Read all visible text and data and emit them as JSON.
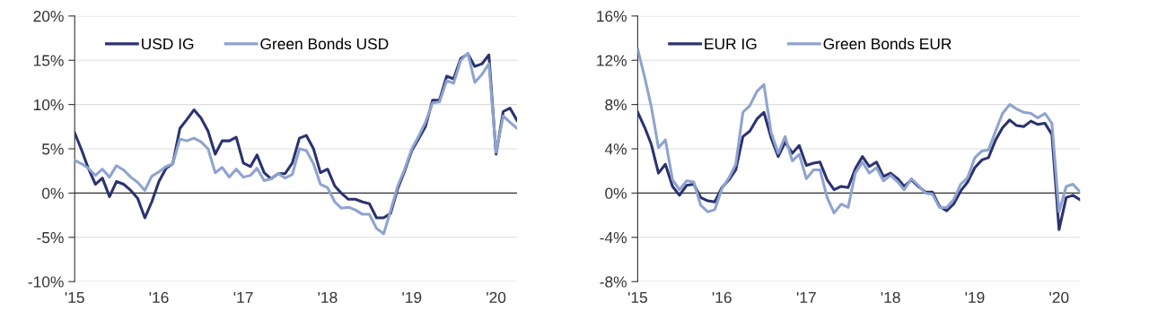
{
  "chart_data": [
    {
      "type": "line",
      "x": [
        "2015-01",
        "2015-02",
        "2015-03",
        "2015-04",
        "2015-05",
        "2015-06",
        "2015-07",
        "2015-08",
        "2015-09",
        "2015-10",
        "2015-11",
        "2015-12",
        "2016-01",
        "2016-02",
        "2016-03",
        "2016-04",
        "2016-05",
        "2016-06",
        "2016-07",
        "2016-08",
        "2016-09",
        "2016-10",
        "2016-11",
        "2016-12",
        "2017-01",
        "2017-02",
        "2017-03",
        "2017-04",
        "2017-05",
        "2017-06",
        "2017-07",
        "2017-08",
        "2017-09",
        "2017-10",
        "2017-11",
        "2017-12",
        "2018-01",
        "2018-02",
        "2018-03",
        "2018-04",
        "2018-05",
        "2018-06",
        "2018-07",
        "2018-08",
        "2018-09",
        "2018-10",
        "2018-11",
        "2018-12",
        "2019-01",
        "2019-02",
        "2019-03",
        "2019-04",
        "2019-05",
        "2019-06",
        "2019-07",
        "2019-08",
        "2019-09",
        "2019-10",
        "2019-11",
        "2019-12",
        "2020-01",
        "2020-02",
        "2020-03",
        "2020-04"
      ],
      "series": [
        {
          "name": "USD IG",
          "color": "#2b3270",
          "values": [
            6.8,
            4.8,
            2.8,
            1.0,
            1.7,
            -0.4,
            1.3,
            1.0,
            0.3,
            -0.6,
            -2.8,
            -1.0,
            1.3,
            2.8,
            3.3,
            7.3,
            8.3,
            9.4,
            8.5,
            7.0,
            4.4,
            5.9,
            5.9,
            6.3,
            3.4,
            3.0,
            4.3,
            2.3,
            1.6,
            2.2,
            2.2,
            3.4,
            6.2,
            6.5,
            5.0,
            2.3,
            2.7,
            0.8,
            0.0,
            -0.7,
            -0.7,
            -1.0,
            -1.2,
            -2.8,
            -2.8,
            -2.3,
            0.5,
            2.5,
            4.8,
            6.2,
            7.5,
            10.5,
            10.5,
            13.2,
            12.9,
            15.2,
            15.7,
            14.3,
            14.6,
            15.6,
            4.4,
            9.2,
            9.6,
            8.2
          ]
        },
        {
          "name": "Green Bonds USD",
          "color": "#8ea3cf",
          "values": [
            3.7,
            3.3,
            2.8,
            2.0,
            2.7,
            1.8,
            3.1,
            2.6,
            1.8,
            1.2,
            0.3,
            1.9,
            2.4,
            3.0,
            3.3,
            6.1,
            5.9,
            6.2,
            5.8,
            5.0,
            2.3,
            2.9,
            1.8,
            2.7,
            1.8,
            2.0,
            2.8,
            1.4,
            1.6,
            2.2,
            1.7,
            2.1,
            5.0,
            4.8,
            3.3,
            1.0,
            0.6,
            -1.0,
            -1.7,
            -1.6,
            -1.9,
            -2.4,
            -2.4,
            -4.0,
            -4.6,
            -2.0,
            0.8,
            2.7,
            5.0,
            6.5,
            8.0,
            10.2,
            10.3,
            12.7,
            12.4,
            15.0,
            15.8,
            12.5,
            13.4,
            14.6,
            4.6,
            8.7,
            8.0,
            7.3
          ]
        }
      ],
      "xlim": [
        "2015-01",
        "2020-04"
      ],
      "xticks": [
        {
          "value": "2015-01",
          "label": "'15"
        },
        {
          "value": "2016-01",
          "label": "'16"
        },
        {
          "value": "2017-01",
          "label": "'17"
        },
        {
          "value": "2018-01",
          "label": "'18"
        },
        {
          "value": "2019-01",
          "label": "'19"
        },
        {
          "value": "2020-01",
          "label": "'20"
        }
      ],
      "ylim": [
        -10,
        20
      ],
      "yticks": [
        {
          "value": -10,
          "label": "-10%"
        },
        {
          "value": -5,
          "label": "-5%"
        },
        {
          "value": 0,
          "label": "0%"
        },
        {
          "value": 5,
          "label": "5%"
        },
        {
          "value": 10,
          "label": "10%"
        },
        {
          "value": 15,
          "label": "15%"
        },
        {
          "value": 20,
          "label": "20%"
        }
      ],
      "ref_lines": [
        {
          "axis": "y",
          "value": 0,
          "label": null,
          "color": "#333333"
        }
      ],
      "grid": "y",
      "legend": "top left",
      "marker": "none",
      "line_style": "solid"
    },
    {
      "type": "line",
      "x": [
        "2015-01",
        "2015-02",
        "2015-03",
        "2015-04",
        "2015-05",
        "2015-06",
        "2015-07",
        "2015-08",
        "2015-09",
        "2015-10",
        "2015-11",
        "2015-12",
        "2016-01",
        "2016-02",
        "2016-03",
        "2016-04",
        "2016-05",
        "2016-06",
        "2016-07",
        "2016-08",
        "2016-09",
        "2016-10",
        "2016-11",
        "2016-12",
        "2017-01",
        "2017-02",
        "2017-03",
        "2017-04",
        "2017-05",
        "2017-06",
        "2017-07",
        "2017-08",
        "2017-09",
        "2017-10",
        "2017-11",
        "2017-12",
        "2018-01",
        "2018-02",
        "2018-03",
        "2018-04",
        "2018-05",
        "2018-06",
        "2018-07",
        "2018-08",
        "2018-09",
        "2018-10",
        "2018-11",
        "2018-12",
        "2019-01",
        "2019-02",
        "2019-03",
        "2019-04",
        "2019-05",
        "2019-06",
        "2019-07",
        "2019-08",
        "2019-09",
        "2019-10",
        "2019-11",
        "2019-12",
        "2020-01",
        "2020-02",
        "2020-03",
        "2020-04"
      ],
      "series": [
        {
          "name": "EUR IG",
          "color": "#2b3270",
          "values": [
            7.3,
            5.9,
            4.4,
            1.8,
            2.6,
            0.6,
            -0.2,
            0.7,
            0.8,
            -0.4,
            -0.7,
            -0.8,
            0.5,
            1.2,
            2.1,
            5.1,
            5.6,
            6.7,
            7.3,
            5.0,
            3.3,
            4.6,
            3.6,
            4.3,
            2.5,
            2.7,
            2.8,
            1.2,
            0.3,
            0.6,
            0.5,
            2.2,
            3.3,
            2.4,
            2.8,
            1.5,
            1.8,
            1.3,
            0.6,
            1.2,
            0.6,
            0.1,
            0.1,
            -1.2,
            -1.6,
            -1.0,
            0.2,
            1.0,
            2.3,
            3.0,
            3.2,
            4.8,
            5.9,
            6.6,
            6.1,
            6.0,
            6.5,
            6.2,
            6.3,
            5.3,
            -3.3,
            -0.4,
            -0.2,
            -0.6
          ]
        },
        {
          "name": "Green Bonds EUR",
          "color": "#8ea3cf",
          "values": [
            13.0,
            10.4,
            7.8,
            4.1,
            4.8,
            1.2,
            0.3,
            1.1,
            1.0,
            -1.1,
            -1.7,
            -1.5,
            0.4,
            1.4,
            2.6,
            7.3,
            7.9,
            9.2,
            9.8,
            5.5,
            3.6,
            5.1,
            2.9,
            3.5,
            1.3,
            2.1,
            2.1,
            -0.4,
            -1.8,
            -1.0,
            -1.3,
            1.8,
            2.8,
            1.8,
            2.3,
            1.1,
            1.6,
            1.0,
            0.3,
            1.3,
            0.7,
            0.0,
            -0.1,
            -1.3,
            -1.3,
            -0.6,
            0.8,
            1.4,
            3.2,
            3.8,
            3.9,
            5.6,
            7.2,
            8.0,
            7.6,
            7.3,
            7.2,
            6.8,
            7.2,
            6.3,
            -1.7,
            0.6,
            0.8,
            0.1
          ]
        }
      ],
      "xlim": [
        "2015-01",
        "2020-04"
      ],
      "xticks": [
        {
          "value": "2015-01",
          "label": "'15"
        },
        {
          "value": "2016-01",
          "label": "'16"
        },
        {
          "value": "2017-01",
          "label": "'17"
        },
        {
          "value": "2018-01",
          "label": "'18"
        },
        {
          "value": "2019-01",
          "label": "'19"
        },
        {
          "value": "2020-01",
          "label": "'20"
        }
      ],
      "ylim": [
        -8,
        16
      ],
      "yticks": [
        {
          "value": -8,
          "label": "-8%"
        },
        {
          "value": -4,
          "label": "-4%"
        },
        {
          "value": 0,
          "label": "0%"
        },
        {
          "value": 4,
          "label": "4%"
        },
        {
          "value": 8,
          "label": "8%"
        },
        {
          "value": 12,
          "label": "12%"
        },
        {
          "value": 16,
          "label": "16%"
        }
      ],
      "ref_lines": [
        {
          "axis": "y",
          "value": 0,
          "label": null,
          "color": "#333333"
        }
      ],
      "grid": "y",
      "legend": "top left",
      "marker": "none",
      "line_style": "solid"
    }
  ]
}
